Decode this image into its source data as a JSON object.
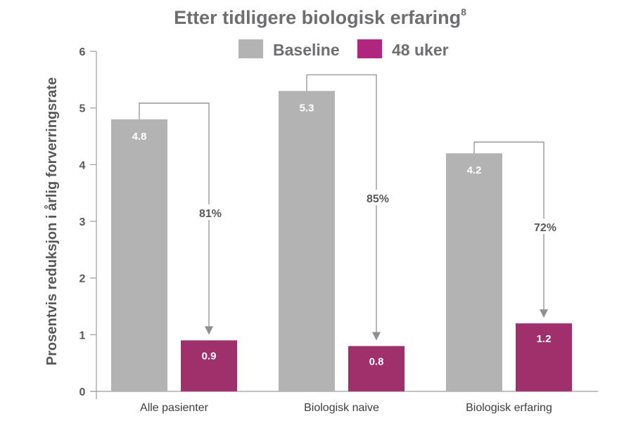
{
  "chart_data": {
    "type": "bar",
    "title": "Etter tidligere biologisk erfaring",
    "title_superscript": "8",
    "ylabel": "Prosentvis reduksjon i årlig forverringsrate",
    "xlabel": "",
    "ylim": [
      0,
      6
    ],
    "yticks": [
      "0",
      "1",
      "2",
      "3",
      "4",
      "5",
      "6"
    ],
    "grid": false,
    "legend_placement": "top-center",
    "categories": [
      "Alle pasienter",
      "Biologisk naive",
      "Biologisk erfaring"
    ],
    "series": [
      {
        "name": "Baseline",
        "values": [
          4.8,
          5.3,
          4.2
        ],
        "labels": [
          "4.8",
          "5.3",
          "4.2"
        ],
        "color": "#b3b3b3"
      },
      {
        "name": "48 uker",
        "values": [
          0.9,
          0.8,
          1.2
        ],
        "labels": [
          "0.9",
          "0.8",
          "1.2"
        ],
        "color": "#a0306c"
      }
    ],
    "legend_colors": [
      "#b3b3b3",
      "#b0267e"
    ],
    "reductions": [
      "81%",
      "85%",
      "72%"
    ]
  }
}
